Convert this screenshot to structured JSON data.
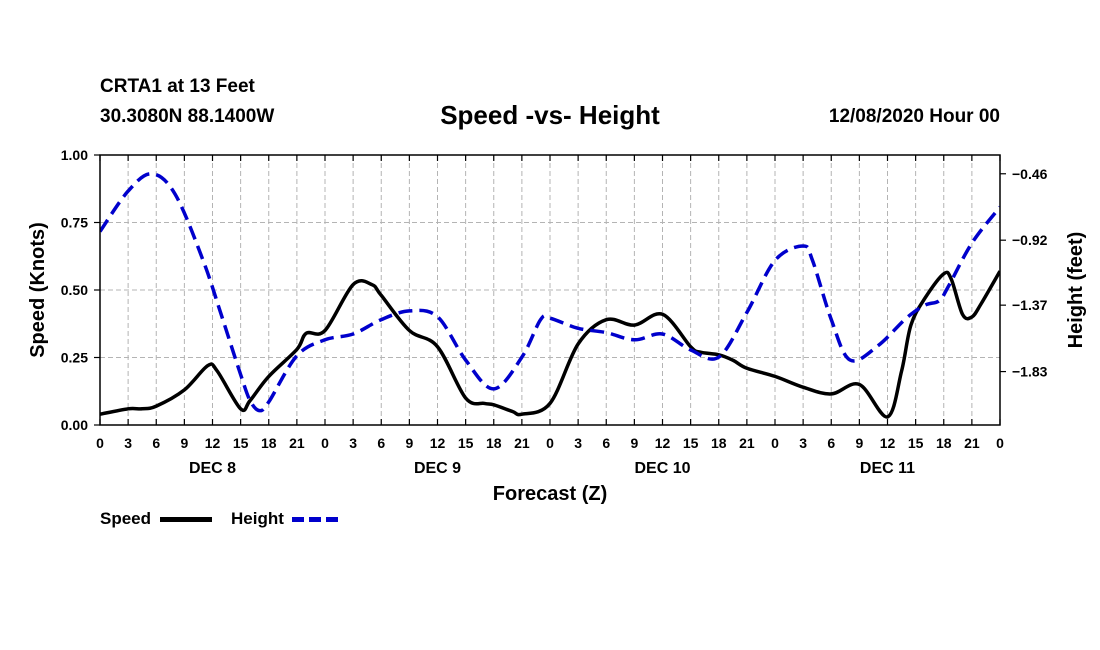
{
  "header": {
    "station": "CRTA1 at 13 Feet",
    "coords": "30.3080N 88.1400W",
    "title": "Speed -vs- Height",
    "run_time": "12/08/2020 Hour 00"
  },
  "legend": {
    "speed_label": "Speed",
    "height_label": "Height"
  },
  "chart_data": {
    "type": "line",
    "title": "Speed -vs- Height",
    "xlabel": "Forecast (Z)",
    "ylabel_left": "Speed (Knots)",
    "ylabel_right": "Height (feet)",
    "x_range_hours": [
      0,
      96
    ],
    "x_tick_hours": [
      0,
      3,
      6,
      9,
      12,
      15,
      18,
      21,
      24,
      27,
      30,
      33,
      36,
      39,
      42,
      45,
      48,
      51,
      54,
      57,
      60,
      63,
      66,
      69,
      72,
      75,
      78,
      81,
      84,
      87,
      90,
      93,
      96
    ],
    "x_tick_labels": [
      "0",
      "3",
      "6",
      "9",
      "12",
      "15",
      "18",
      "21",
      "0",
      "3",
      "6",
      "9",
      "12",
      "15",
      "18",
      "21",
      "0",
      "3",
      "6",
      "9",
      "12",
      "15",
      "18",
      "21",
      "0",
      "3",
      "6",
      "9",
      "12",
      "15",
      "18",
      "21",
      "0"
    ],
    "day_labels": [
      {
        "label": "DEC 8",
        "hour": 12
      },
      {
        "label": "DEC 9",
        "hour": 36
      },
      {
        "label": "DEC 10",
        "hour": 60
      },
      {
        "label": "DEC 11",
        "hour": 84
      }
    ],
    "y_left_range": [
      0,
      1
    ],
    "y_left_ticks": [
      0,
      0.25,
      0.5,
      0.75,
      1.0
    ],
    "y_left_tick_labels": [
      "0.00",
      "0.25",
      "0.50",
      "0.75",
      "1.00"
    ],
    "y_right_range": [
      -2.2,
      -0.33
    ],
    "y_right_ticks": [
      -0.46,
      -0.92,
      -1.37,
      -1.83
    ],
    "y_right_tick_labels": [
      "-0.46",
      "-0.92",
      "-1.37",
      "-1.83"
    ],
    "grid": true,
    "series": [
      {
        "name": "Speed",
        "color": "#000000",
        "dash": "solid",
        "axis": "left",
        "hours": [
          0,
          3,
          4.5,
          6,
          9,
          11.5,
          12.5,
          15,
          16,
          18,
          21,
          22,
          24,
          27,
          29,
          30,
          33,
          36,
          39,
          41,
          42,
          44,
          45,
          48,
          51,
          54,
          57,
          60,
          63,
          64,
          66,
          67.5,
          69,
          72,
          75,
          78,
          81,
          84,
          85.5,
          86.5,
          88,
          90,
          90.8,
          92,
          93,
          94,
          96
        ],
        "values": [
          0.04,
          0.06,
          0.06,
          0.07,
          0.13,
          0.22,
          0.2,
          0.06,
          0.09,
          0.18,
          0.28,
          0.34,
          0.35,
          0.52,
          0.52,
          0.48,
          0.35,
          0.29,
          0.1,
          0.08,
          0.075,
          0.05,
          0.04,
          0.08,
          0.3,
          0.39,
          0.37,
          0.41,
          0.29,
          0.27,
          0.26,
          0.24,
          0.21,
          0.18,
          0.14,
          0.115,
          0.15,
          0.03,
          0.2,
          0.37,
          0.47,
          0.56,
          0.54,
          0.41,
          0.4,
          0.45,
          0.57
        ]
      },
      {
        "name": "Height",
        "color": "#0000cc",
        "dash": "dashed",
        "axis": "right",
        "hours": [
          0,
          3,
          5.5,
          8,
          11,
          13,
          15,
          16,
          17,
          18,
          21,
          24,
          27,
          30,
          33,
          36,
          39,
          42,
          45,
          47,
          48,
          51,
          54,
          57,
          60,
          63,
          66,
          69,
          72,
          75,
          76,
          78,
          80,
          83,
          86,
          88,
          89.5,
          90.5,
          93,
          96
        ],
        "values": [
          -0.86,
          -0.58,
          -0.46,
          -0.6,
          -1.06,
          -1.45,
          -1.85,
          -2.03,
          -2.1,
          -2.04,
          -1.72,
          -1.61,
          -1.57,
          -1.47,
          -1.41,
          -1.45,
          -1.75,
          -1.95,
          -1.73,
          -1.47,
          -1.46,
          -1.53,
          -1.56,
          -1.61,
          -1.57,
          -1.68,
          -1.73,
          -1.42,
          -1.06,
          -0.96,
          -1.06,
          -1.47,
          -1.75,
          -1.65,
          -1.46,
          -1.37,
          -1.34,
          -1.24,
          -0.94,
          -0.69
        ]
      }
    ]
  }
}
